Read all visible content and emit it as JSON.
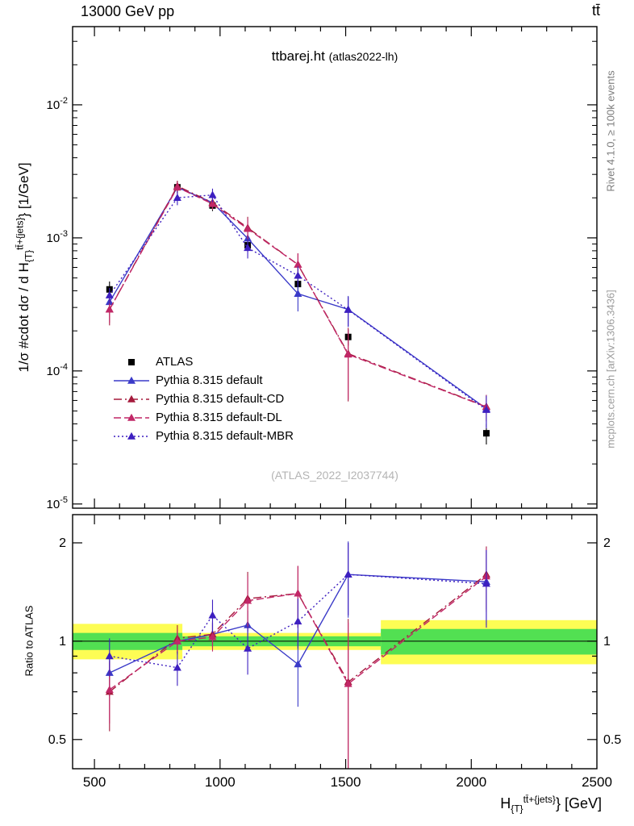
{
  "header": {
    "left": "13000 GeV pp",
    "right": "tt̄"
  },
  "panel_title": {
    "main": "ttbarej.ht",
    "paren": "(atlas2022-lh)"
  },
  "watermark": "(ATLAS_2022_I2037744)",
  "right_margin": {
    "top": "Rivet 4.1.0, ≥ 100k events",
    "bottom": "mcplots.cern.ch [arXiv:1306.3436]"
  },
  "axes": {
    "x": {
      "ticks": [
        500,
        1000,
        1500,
        2000,
        2500
      ],
      "label_prefix": "H",
      "label_sub": "{T}",
      "label_sup": "tt̄+{jets}",
      "label_suffix": "} [GeV]"
    },
    "y_main": {
      "tick_exponents": [
        -2,
        -3,
        -4,
        -5
      ],
      "label_prefix": "1/σ #cdot dσ / d H",
      "label_sub": "{T}",
      "label_sup": "tt̄+{jets}",
      "label_suffix": "} [1/GeV]"
    },
    "y_ratio": {
      "ticks": [
        2,
        1,
        0.5
      ],
      "label": "Ratio to ATLAS"
    }
  },
  "chart_data": [
    {
      "type": "line",
      "title": "ttbarej.ht (atlas2022-lh)",
      "xlabel": "H_{T}^{tt+jets} [GeV]",
      "ylabel": "1/sigma dsigma/dH_T^{tt+jets} [1/GeV]",
      "xlim": [
        413,
        2500
      ],
      "ylog": true,
      "ylim": [
        9.3e-06,
        0.0387
      ],
      "legend_position": "middle-left",
      "grid": false,
      "x": [
        560,
        830,
        970,
        1110,
        1310,
        1510,
        2060
      ],
      "series": [
        {
          "name": "ATLAS",
          "color": "#000000",
          "marker": "square",
          "line": "none",
          "values": [
            0.00041,
            0.0024,
            0.00175,
            0.00088,
            0.00045,
            0.00018,
            3.4e-05
          ],
          "yerr": [
            6e-05,
            0.00025,
            0.00016,
            9e-05,
            5e-05,
            2.5e-05,
            6e-06
          ]
        },
        {
          "name": "Pythia 8.315 default",
          "color": "#3a3ac8",
          "marker": "triangle",
          "line": "solid",
          "values": [
            0.00033,
            0.0024,
            0.00184,
            0.00099,
            0.00038,
            0.00029,
            5.2e-05
          ],
          "yerr": [
            5e-05,
            0.00019,
            0.00016,
            0.00011,
            0.0001,
            7.6e-05,
            1.4e-05
          ]
        },
        {
          "name": "Pythia 8.315 default-CD",
          "color": "#a51a3c",
          "marker": "triangle",
          "line": "dashdot",
          "values": [
            0.00029,
            0.00245,
            0.00184,
            0.00119,
            0.00063,
            0.000135,
            5.4e-05
          ],
          "yerr": [
            7e-05,
            0.00024,
            0.000175,
            0.00025,
            0.000135,
            7.6e-05,
            1.2e-05
          ]
        },
        {
          "name": "Pythia 8.315 default-DL",
          "color": "#c12767",
          "marker": "triangle",
          "line": "dashed",
          "values": [
            0.00029,
            0.0024,
            0.0018,
            0.00117,
            0.00063,
            0.000133,
            5.37e-05
          ],
          "yerr": [
            6e-05,
            0.00022,
            0.000175,
            0.00022,
            0.000135,
            7.2e-05,
            1.2e-05
          ]
        },
        {
          "name": "Pythia 8.315 default-MBR",
          "color": "#3d1fc0",
          "marker": "triangle",
          "line": "dotted",
          "values": [
            0.00037,
            0.002,
            0.0021,
            0.00084,
            0.00052,
            0.000288,
            5.1e-05
          ],
          "yerr": [
            5e-05,
            0.00024,
            0.000245,
            0.00014,
            9e-05,
            7.2e-05,
            1.4e-05
          ]
        }
      ]
    },
    {
      "type": "ratio-line",
      "ylabel": "Ratio to ATLAS",
      "ylog": true,
      "ylim": [
        0.407,
        2.44
      ],
      "reference": 1,
      "band_colors": {
        "yellow": "#fdfd54",
        "green": "#52e052"
      },
      "bands": [
        {
          "x0": 413,
          "x1": 850,
          "green": [
            0.94,
            1.06
          ],
          "yellow": [
            0.88,
            1.13
          ]
        },
        {
          "x0": 850,
          "x1": 1640,
          "green": [
            0.965,
            1.035
          ],
          "yellow": [
            0.94,
            1.06
          ]
        },
        {
          "x0": 1640,
          "x1": 2500,
          "green": [
            0.91,
            1.09
          ],
          "yellow": [
            0.85,
            1.16
          ]
        }
      ],
      "x": [
        560,
        830,
        970,
        1110,
        1310,
        1510,
        2060
      ],
      "series": [
        {
          "name": "Pythia 8.315 default",
          "color": "#3a3ac8",
          "marker": "triangle",
          "line": "solid",
          "values": [
            0.8,
            1.0,
            1.05,
            1.12,
            0.85,
            1.6,
            1.52
          ],
          "yerr": [
            0.12,
            0.08,
            0.09,
            0.12,
            0.22,
            0.42,
            0.4
          ]
        },
        {
          "name": "Pythia 8.315 default-CD",
          "color": "#a51a3c",
          "marker": "triangle",
          "line": "dashdot",
          "values": [
            0.7,
            1.02,
            1.05,
            1.35,
            1.4,
            0.75,
            1.6
          ],
          "yerr": [
            0.17,
            0.1,
            0.1,
            0.28,
            0.3,
            0.42,
            0.35
          ]
        },
        {
          "name": "Pythia 8.315 default-DL",
          "color": "#c12767",
          "marker": "triangle",
          "line": "dashed",
          "values": [
            0.71,
            1.0,
            1.03,
            1.33,
            1.4,
            0.74,
            1.58
          ],
          "yerr": [
            0.15,
            0.09,
            0.1,
            0.25,
            0.3,
            0.4,
            0.35
          ]
        },
        {
          "name": "Pythia 8.315 default-MBR",
          "color": "#3d1fc0",
          "marker": "triangle",
          "line": "dotted",
          "values": [
            0.9,
            0.83,
            1.2,
            0.95,
            1.15,
            1.6,
            1.5
          ],
          "yerr": [
            0.12,
            0.1,
            0.14,
            0.16,
            0.2,
            0.4,
            0.4
          ]
        }
      ]
    }
  ]
}
